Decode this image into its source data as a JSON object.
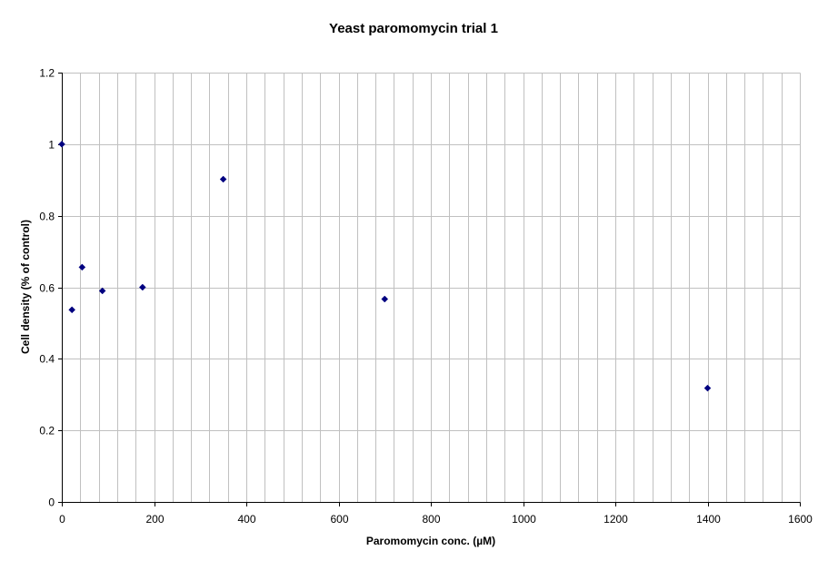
{
  "chart_data": {
    "type": "scatter",
    "title": "Yeast paromomycin trial 1",
    "xlabel": "Paromomycin conc. (µM)",
    "ylabel": "Cell density (%  of control)",
    "xlim": [
      0,
      1600
    ],
    "ylim": [
      0,
      1.2
    ],
    "x_major_ticks": [
      0,
      200,
      400,
      600,
      800,
      1000,
      1200,
      1400,
      1600
    ],
    "x_minor_step": 40,
    "y_ticks": [
      0,
      0.2,
      0.4,
      0.6,
      0.8,
      1,
      1.2
    ],
    "grid": true,
    "legend": "none",
    "marker": "diamond",
    "series": [
      {
        "x": [
          0,
          22,
          44,
          88,
          175,
          350,
          700,
          1400
        ],
        "y": [
          1.0,
          0.537,
          0.656,
          0.59,
          0.6,
          0.902,
          0.567,
          0.318
        ],
        "color": "#000080"
      }
    ],
    "colors": {
      "plot_background": "#ffffff",
      "grid": "#c0c0c0",
      "axis": "#000000",
      "marker": "#000080"
    }
  }
}
